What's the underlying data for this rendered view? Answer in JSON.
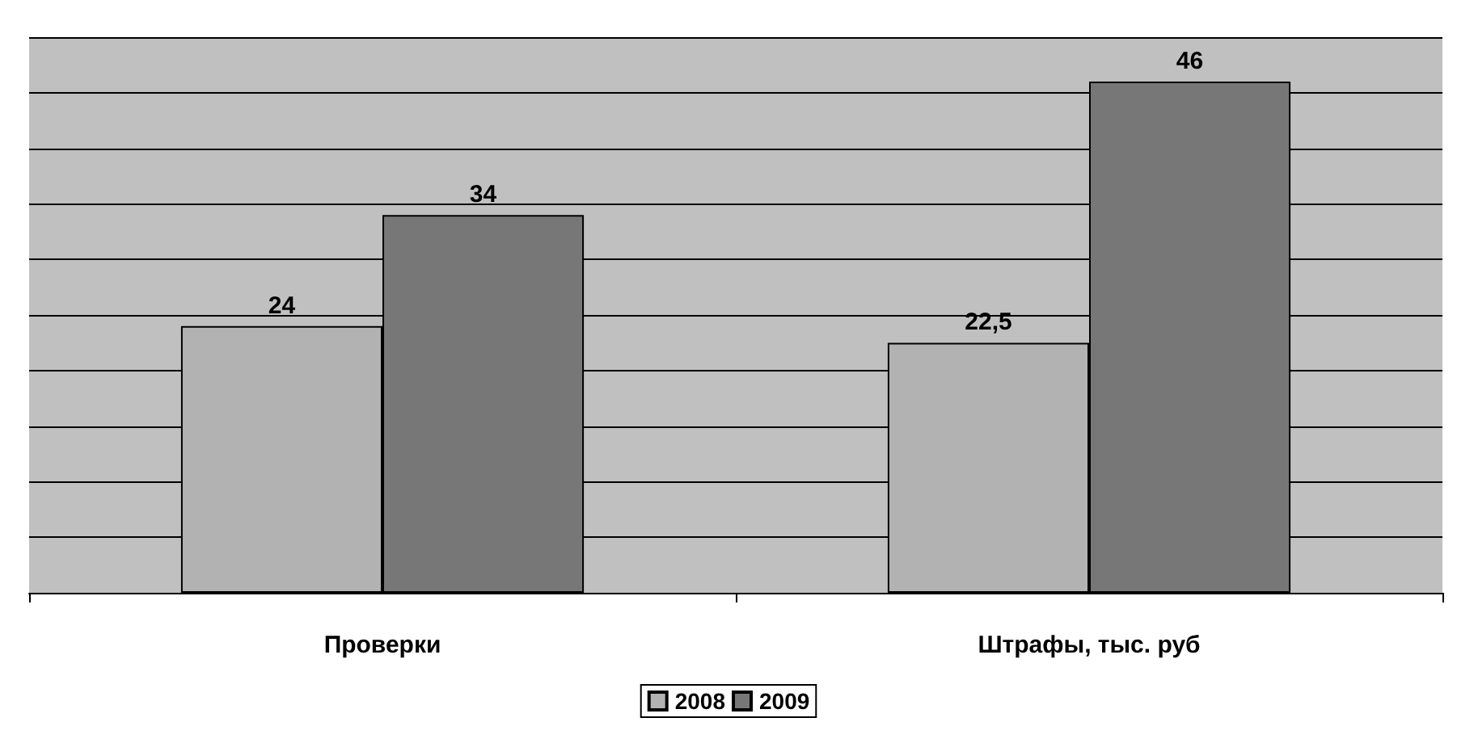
{
  "chart_data": {
    "type": "bar",
    "categories": [
      "Проверки",
      "Штрафы, тыс. руб"
    ],
    "series": [
      {
        "name": "2008",
        "color": "#b2b2b2",
        "values": [
          24,
          22.5
        ],
        "value_labels": [
          "24",
          "22,5"
        ]
      },
      {
        "name": "2009",
        "color": "#777777",
        "values": [
          34,
          46
        ],
        "value_labels": [
          "34",
          "46"
        ]
      }
    ],
    "ylim": [
      0,
      50
    ],
    "yticks": [
      {
        "value": 0,
        "label": null
      },
      {
        "value": 5,
        "label": null
      },
      {
        "value": 10,
        "label": null
      },
      {
        "value": 15,
        "label": null
      },
      {
        "value": 20,
        "label": null
      },
      {
        "value": 25,
        "label": null
      },
      {
        "value": 30,
        "label": null
      },
      {
        "value": 35,
        "label": null
      },
      {
        "value": 40,
        "label": null
      },
      {
        "value": 45,
        "label": null
      },
      {
        "value": 50,
        "label": null
      }
    ],
    "grid": true,
    "legend": "bottom",
    "tick_labels": "x"
  }
}
